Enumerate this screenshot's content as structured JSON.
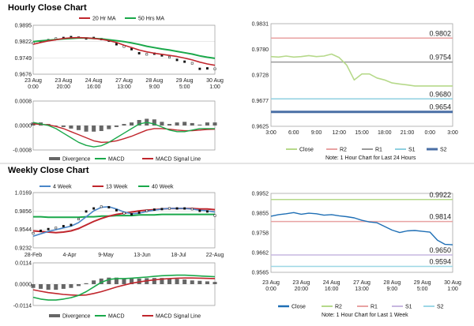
{
  "sections": {
    "hourly_title": "Hourly Close Chart",
    "weekly_title": "Weekly Close Chart"
  },
  "colors": {
    "ma20": "#c0262d",
    "ma50": "#1aa84a",
    "ma4": "#4a86c8",
    "ma13": "#c0262d",
    "ma40": "#1aa84a",
    "macd": "#1aa84a",
    "signal": "#c0262d",
    "divergence": "#666666",
    "close_hourly": "#b6d98a",
    "close_weekly": "#1f6fb5",
    "r2": "#e8a2a2",
    "r1": "#9a9a9a",
    "s1": "#8fd0e0",
    "s2": "#4a6fa5",
    "s2_weekly": "#9dd7e6"
  },
  "chart_data": [
    {
      "id": "hourly-candles",
      "type": "line",
      "legend": [
        "20 Hr MA",
        "50 Hrs MA"
      ],
      "x_tick_labels": [
        "23 Aug\n0:00",
        "23 Aug\n20:00",
        "24 Aug\n16:00",
        "27 Aug\n13:00",
        "28 Aug\n9:00",
        "29 Aug\n5:00",
        "30 Aug\n1:00"
      ],
      "y_tick_labels": [
        "0.9895",
        "0.9822",
        "0.9749",
        "0.9676"
      ],
      "ylim": [
        0.9676,
        0.9895
      ],
      "series": [
        {
          "name": "Price",
          "values": [
            0.9815,
            0.9822,
            0.9828,
            0.9835,
            0.9838,
            0.9842,
            0.984,
            0.9836,
            0.9838,
            0.9833,
            0.9826,
            0.981,
            0.98,
            0.9788,
            0.977,
            0.9765,
            0.9768,
            0.976,
            0.9752,
            0.974,
            0.9732,
            0.9725,
            0.97,
            0.9702,
            0.97
          ]
        },
        {
          "name": "20 Hr MA",
          "values": [
            0.981,
            0.9818,
            0.9825,
            0.983,
            0.9836,
            0.9839,
            0.984,
            0.9838,
            0.9836,
            0.9832,
            0.9826,
            0.9818,
            0.9806,
            0.9795,
            0.9784,
            0.9776,
            0.977,
            0.9765,
            0.976,
            0.9755,
            0.9748,
            0.974,
            0.973,
            0.9722,
            0.9716
          ]
        },
        {
          "name": "50 Hrs MA",
          "values": [
            0.9822,
            0.9825,
            0.9828,
            0.9831,
            0.9834,
            0.9836,
            0.9838,
            0.9838,
            0.9836,
            0.9834,
            0.983,
            0.9826,
            0.9822,
            0.9816,
            0.9809,
            0.9801,
            0.9795,
            0.9789,
            0.9784,
            0.9778,
            0.9772,
            0.9766,
            0.9758,
            0.9752,
            0.9747
          ]
        }
      ]
    },
    {
      "id": "hourly-macd",
      "type": "line",
      "legend": [
        "Divergence",
        "MACD",
        "MACD Signal Line"
      ],
      "y_tick_labels": [
        "0.0008",
        "0.0000",
        "-0.0008"
      ],
      "ylim": [
        -0.0008,
        0.0008
      ],
      "series": [
        {
          "name": "Divergence",
          "values": [
            0.0001,
            0.0001,
            5e-05,
            0,
            -5e-05,
            -0.0001,
            -0.00015,
            -0.0002,
            -0.0002,
            -0.00018,
            -0.00012,
            -5e-05,
            5e-05,
            0.0001,
            0.00018,
            0.00022,
            0.0002,
            0.00012,
            5e-05,
            0.0001,
            0.00012,
            8e-05,
            3e-05,
            0.0001,
            0.0001
          ]
        },
        {
          "name": "MACD",
          "values": [
            0.0001,
            5e-05,
            0,
            -0.0001,
            -0.00025,
            -0.0004,
            -0.00055,
            -0.00065,
            -0.0007,
            -0.00066,
            -0.00055,
            -0.0004,
            -0.00025,
            -0.0001,
            5e-05,
            0.0001,
            5e-05,
            -5e-05,
            -0.00015,
            -0.0002,
            -0.0002,
            -0.00015,
            -0.0001,
            -0.0001,
            -0.0001
          ]
        },
        {
          "name": "MACD Signal Line",
          "values": [
            5e-05,
            4e-05,
            2e-05,
            -3e-05,
            -0.0001,
            -0.0002,
            -0.0003,
            -0.0004,
            -0.0005,
            -0.00055,
            -0.00054,
            -0.0005,
            -0.00043,
            -0.00035,
            -0.00025,
            -0.00015,
            -0.0001,
            -0.0001,
            -0.00012,
            -0.00015,
            -0.00017,
            -0.00017,
            -0.00015,
            -0.00013,
            -0.00012
          ]
        }
      ]
    },
    {
      "id": "hourly-levels",
      "type": "line",
      "legend": [
        "Close",
        "R2",
        "R1",
        "S1",
        "S2"
      ],
      "note": "Note: 1 Hour Chart for Last 24 Hours",
      "x_tick_labels": [
        "3:00",
        "6:00",
        "9:00",
        "12:00",
        "15:00",
        "18:00",
        "21:00",
        "0:00",
        "3:00"
      ],
      "y_tick_labels": [
        "0.9831",
        "0.9780",
        "0.9728",
        "0.9677",
        "0.9625"
      ],
      "ylim": [
        0.9625,
        0.9831
      ],
      "levels": [
        {
          "name": "R2",
          "value": 0.9802,
          "label": "0.9802"
        },
        {
          "name": "R1",
          "value": 0.9754,
          "label": "0.9754"
        },
        {
          "name": "S1",
          "value": 0.968,
          "label": "0.9680"
        },
        {
          "name": "S2",
          "value": 0.9654,
          "label": "0.9654"
        }
      ],
      "series": [
        {
          "name": "Close",
          "values": [
            0.9765,
            0.9764,
            0.9766,
            0.9764,
            0.9765,
            0.9767,
            0.9765,
            0.9766,
            0.977,
            0.9763,
            0.9748,
            0.9718,
            0.973,
            0.973,
            0.9722,
            0.9718,
            0.9712,
            0.971,
            0.9708,
            0.9706,
            0.9706,
            0.9706,
            0.9706,
            0.9706,
            0.9706
          ]
        }
      ]
    },
    {
      "id": "weekly-candles",
      "type": "line",
      "legend": [
        "4 Week",
        "13 Week",
        "40 Week"
      ],
      "x_tick_labels": [
        "28-Feb",
        "4-Apr",
        "9-May",
        "13-Jun",
        "18-Jul",
        "22-Aug"
      ],
      "y_tick_labels": [
        "1.0169",
        "0.9856",
        "0.9544",
        "0.9232"
      ],
      "ylim": [
        0.9232,
        1.0169
      ],
      "series": [
        {
          "name": "Price",
          "values": [
            0.948,
            0.952,
            0.955,
            0.957,
            0.96,
            0.962,
            0.972,
            0.985,
            0.99,
            0.993,
            0.992,
            0.987,
            0.982,
            0.98,
            0.983,
            0.986,
            0.988,
            0.989,
            0.99,
            0.99,
            0.99,
            0.989,
            0.986,
            0.985,
            0.978
          ]
        },
        {
          "name": "4 Week",
          "values": [
            0.943,
            0.947,
            0.951,
            0.954,
            0.957,
            0.96,
            0.966,
            0.976,
            0.986,
            0.992,
            0.993,
            0.989,
            0.984,
            0.981,
            0.982,
            0.985,
            0.987,
            0.989,
            0.99,
            0.99,
            0.99,
            0.989,
            0.987,
            0.986,
            0.984
          ]
        },
        {
          "name": "13 Week",
          "values": [
            0.952,
            0.951,
            0.95,
            0.949,
            0.95,
            0.952,
            0.956,
            0.962,
            0.968,
            0.973,
            0.977,
            0.98,
            0.982,
            0.984,
            0.986,
            0.987,
            0.988,
            0.989,
            0.99,
            0.99,
            0.99,
            0.99,
            0.989,
            0.989,
            0.988
          ]
        },
        {
          "name": "40 Week",
          "values": [
            0.976,
            0.976,
            0.975,
            0.975,
            0.975,
            0.975,
            0.975,
            0.976,
            0.976,
            0.977,
            0.977,
            0.978,
            0.978,
            0.978,
            0.979,
            0.979,
            0.979,
            0.98,
            0.98,
            0.98,
            0.98,
            0.98,
            0.98,
            0.98,
            0.98
          ]
        }
      ]
    },
    {
      "id": "weekly-macd",
      "type": "line",
      "legend": [
        "Divergence",
        "MACD",
        "MACD Signal Line"
      ],
      "y_tick_labels": [
        "0.0114",
        "0.0000",
        "-0.0114"
      ],
      "ylim": [
        -0.0114,
        0.0114
      ],
      "series": [
        {
          "name": "Divergence",
          "values": [
            -0.002,
            -0.0025,
            -0.003,
            -0.003,
            -0.0025,
            -0.002,
            -0.001,
            0.0005,
            0.002,
            0.003,
            0.0035,
            0.0035,
            0.003,
            0.003,
            0.003,
            0.0032,
            0.0033,
            0.0033,
            0.003,
            0.0028,
            0.0025,
            0.002,
            0.0018,
            0.0015,
            0.0012
          ]
        },
        {
          "name": "MACD",
          "values": [
            -0.007,
            -0.008,
            -0.0085,
            -0.0085,
            -0.008,
            -0.0072,
            -0.006,
            -0.004,
            -0.0015,
            0.001,
            0.0025,
            0.003,
            0.003,
            0.0032,
            0.0035,
            0.0038,
            0.0042,
            0.0045,
            0.0047,
            0.0048,
            0.0048,
            0.0046,
            0.0044,
            0.0042,
            0.004
          ]
        },
        {
          "name": "MACD Signal Line",
          "values": [
            -0.003,
            -0.0038,
            -0.0045,
            -0.005,
            -0.0055,
            -0.0058,
            -0.006,
            -0.0058,
            -0.005,
            -0.004,
            -0.0028,
            -0.0015,
            -0.0005,
            0.0005,
            0.0012,
            0.0018,
            0.0023,
            0.0027,
            0.003,
            0.0032,
            0.0033,
            0.0033,
            0.0032,
            0.0031,
            0.003
          ]
        }
      ]
    },
    {
      "id": "weekly-levels",
      "type": "line",
      "legend": [
        "Close",
        "R2",
        "R1",
        "S1",
        "S2"
      ],
      "note": "Note: 1 Hour Chart for Last 1 Week",
      "x_tick_labels": [
        "23 Aug\n0:00",
        "23 Aug\n20:00",
        "24 Aug\n16:00",
        "27 Aug\n13:00",
        "28 Aug\n9:00",
        "29 Aug\n5:00",
        "30 Aug\n1:00"
      ],
      "y_tick_labels": [
        "0.9952",
        "0.9855",
        "0.9758",
        "0.9662",
        "0.9565"
      ],
      "ylim": [
        0.9565,
        0.9952
      ],
      "levels": [
        {
          "name": "R2",
          "value": 0.9922,
          "label": "0.9922"
        },
        {
          "name": "R1",
          "value": 0.9814,
          "label": "0.9814"
        },
        {
          "name": "S1",
          "value": 0.965,
          "label": "0.9650"
        },
        {
          "name": "S2",
          "value": 0.9594,
          "label": "0.9594"
        }
      ],
      "series": [
        {
          "name": "Close",
          "values": [
            0.984,
            0.9848,
            0.9852,
            0.9858,
            0.985,
            0.9855,
            0.9852,
            0.9845,
            0.9848,
            0.9842,
            0.9838,
            0.9832,
            0.982,
            0.9812,
            0.9808,
            0.979,
            0.9772,
            0.976,
            0.9768,
            0.977,
            0.9766,
            0.9762,
            0.9722,
            0.9702,
            0.97
          ]
        }
      ]
    }
  ]
}
